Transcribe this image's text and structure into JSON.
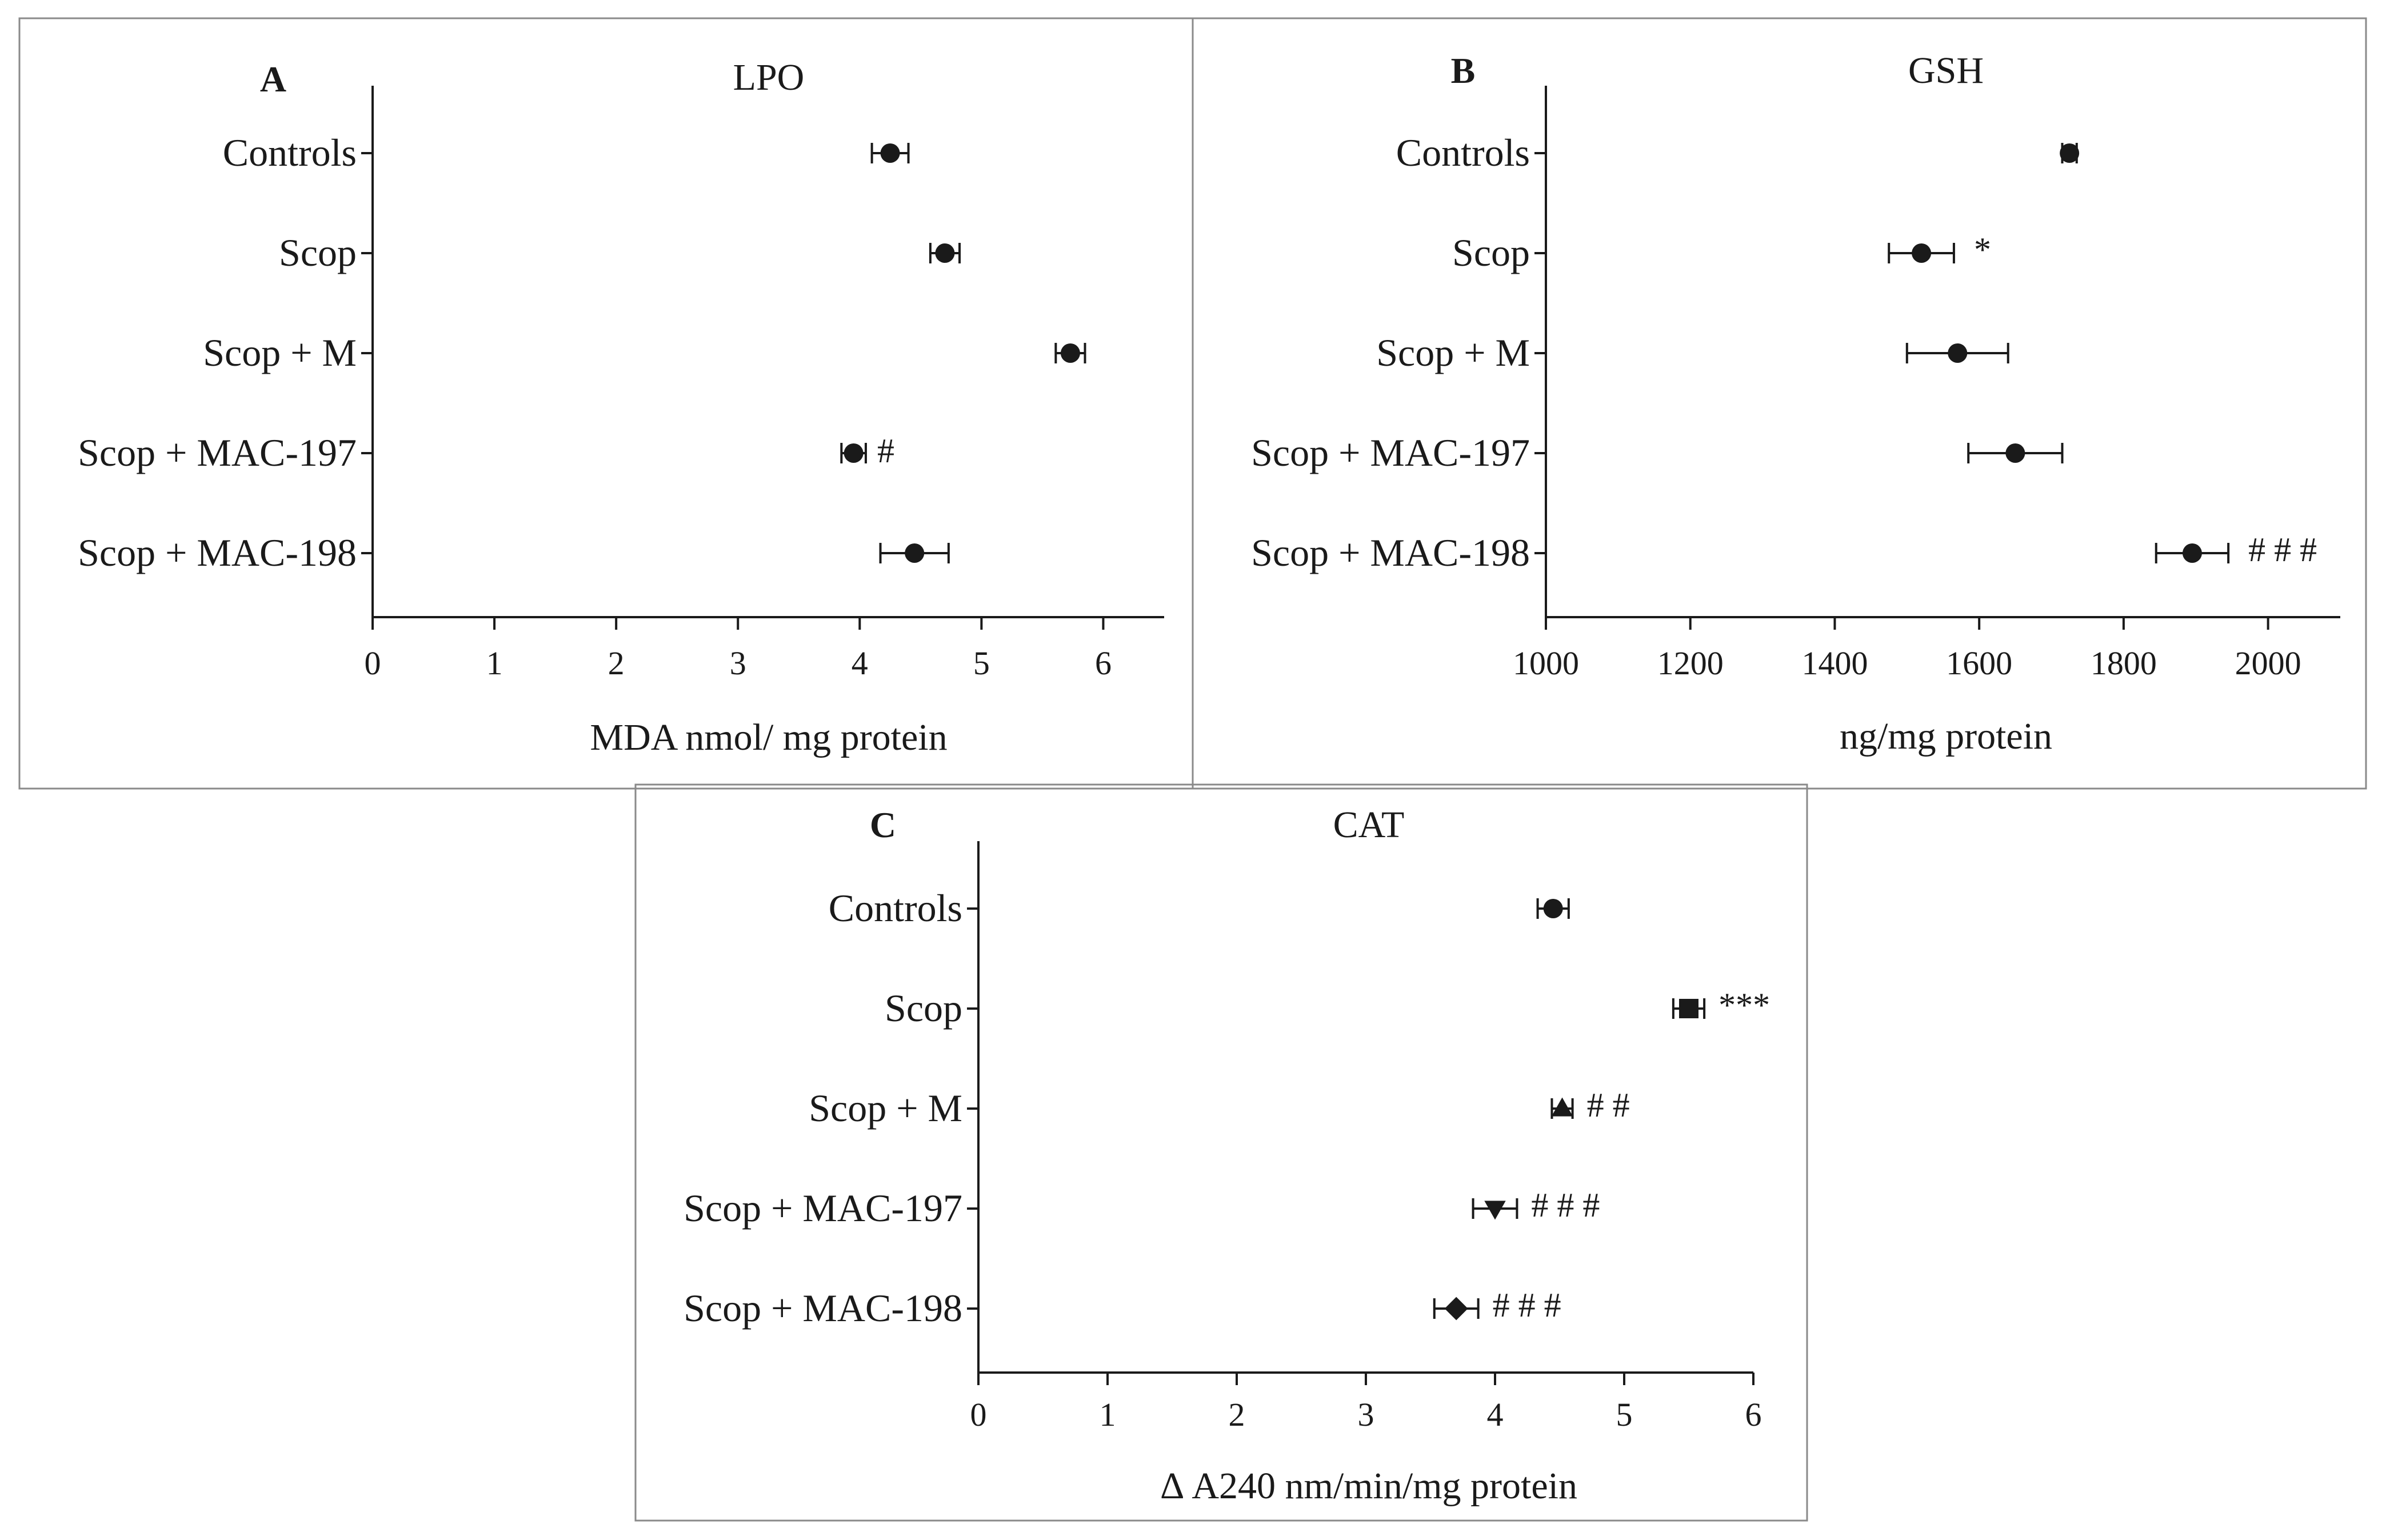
{
  "chart_data": [
    {
      "type": "scatter",
      "panel": "A",
      "title": "LPO",
      "xlabel": "MDA nmol/ mg protein",
      "xlim": [
        0,
        6.5
      ],
      "xticks": [
        0,
        1,
        2,
        3,
        4,
        5,
        6
      ],
      "categories": [
        "Controls",
        "Scop",
        "Scop + M",
        "Scop + MAC-197",
        "Scop + MAC-198"
      ],
      "values": [
        4.25,
        4.7,
        5.73,
        3.95,
        4.45
      ],
      "errors": [
        0.15,
        0.12,
        0.12,
        0.1,
        0.28
      ],
      "markers": [
        "circle",
        "circle",
        "circle",
        "circle",
        "circle"
      ],
      "annotations": [
        "",
        "",
        "",
        "#",
        ""
      ],
      "grid": false
    },
    {
      "type": "scatter",
      "panel": "B",
      "title": "GSH",
      "xlabel": "ng/mg protein",
      "xlim": [
        1000,
        2100
      ],
      "xticks": [
        1000,
        1200,
        1400,
        1600,
        1800,
        2000
      ],
      "categories": [
        "Controls",
        "Scop",
        "Scop + M",
        "Scop + MAC-197",
        "Scop + MAC-198"
      ],
      "values": [
        1725,
        1520,
        1570,
        1650,
        1895
      ],
      "errors": [
        10,
        45,
        70,
        65,
        50
      ],
      "markers": [
        "circle",
        "circle",
        "circle",
        "circle",
        "circle"
      ],
      "annotations": [
        "",
        "*",
        "",
        "",
        "# # #"
      ],
      "grid": false
    },
    {
      "type": "scatter",
      "panel": "C",
      "title": "CAT",
      "xlabel": "Δ A240 nm/min/mg protein",
      "xlim": [
        0,
        6
      ],
      "xticks": [
        0,
        1,
        2,
        3,
        4,
        5,
        6
      ],
      "categories": [
        "Controls",
        "Scop",
        "Scop + M",
        "Scop + MAC-197",
        "Scop + MAC-198"
      ],
      "values": [
        4.45,
        5.5,
        4.52,
        4.0,
        3.7
      ],
      "errors": [
        0.12,
        0.12,
        0.08,
        0.17,
        0.17
      ],
      "markers": [
        "circle",
        "square",
        "triangle-up",
        "triangle-down",
        "diamond"
      ],
      "annotations": [
        "",
        "***",
        "# #",
        "# # #",
        "# # #"
      ],
      "grid": false
    }
  ]
}
